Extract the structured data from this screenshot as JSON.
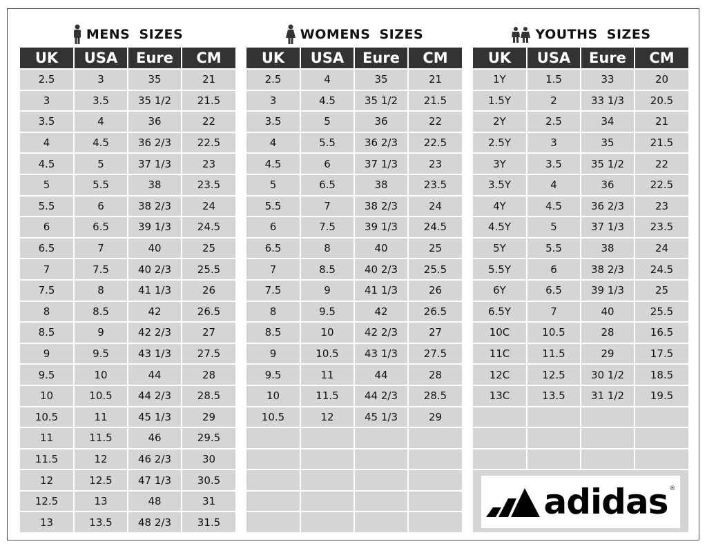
{
  "columns": [
    "UK",
    "USA",
    "Eure",
    "CM"
  ],
  "mens": {
    "title": "MENS  SIZES",
    "icon": "man-icon",
    "rows": [
      [
        "2.5",
        "3",
        "35",
        "21"
      ],
      [
        "3",
        "3.5",
        "35 1/2",
        "21.5"
      ],
      [
        "3.5",
        "4",
        "36",
        "22"
      ],
      [
        "4",
        "4.5",
        "36 2/3",
        "22.5"
      ],
      [
        "4.5",
        "5",
        "37 1/3",
        "23"
      ],
      [
        "5",
        "5.5",
        "38",
        "23.5"
      ],
      [
        "5.5",
        "6",
        "38 2/3",
        "24"
      ],
      [
        "6",
        "6.5",
        "39 1/3",
        "24.5"
      ],
      [
        "6.5",
        "7",
        "40",
        "25"
      ],
      [
        "7",
        "7.5",
        "40 2/3",
        "25.5"
      ],
      [
        "7.5",
        "8",
        "41 1/3",
        "26"
      ],
      [
        "8",
        "8.5",
        "42",
        "26.5"
      ],
      [
        "8.5",
        "9",
        "42 2/3",
        "27"
      ],
      [
        "9",
        "9.5",
        "43 1/3",
        "27.5"
      ],
      [
        "9.5",
        "10",
        "44",
        "28"
      ],
      [
        "10",
        "10.5",
        "44 2/3",
        "28.5"
      ],
      [
        "10.5",
        "11",
        "45 1/3",
        "29"
      ],
      [
        "11",
        "11.5",
        "46",
        "29.5"
      ],
      [
        "11.5",
        "12",
        "46 2/3",
        "30"
      ],
      [
        "12",
        "12.5",
        "47 1/3",
        "30.5"
      ],
      [
        "12.5",
        "13",
        "48",
        "31"
      ],
      [
        "13",
        "13.5",
        "48 2/3",
        "31.5"
      ]
    ]
  },
  "womens": {
    "title": "WOMENS  SIZES",
    "icon": "woman-icon",
    "rows": [
      [
        "2.5",
        "4",
        "35",
        "21"
      ],
      [
        "3",
        "4.5",
        "35 1/2",
        "21.5"
      ],
      [
        "3.5",
        "5",
        "36",
        "22"
      ],
      [
        "4",
        "5.5",
        "36 2/3",
        "22.5"
      ],
      [
        "4.5",
        "6",
        "37  1/3",
        "23"
      ],
      [
        "5",
        "6.5",
        "38",
        "23.5"
      ],
      [
        "5.5",
        "7",
        "38 2/3",
        "24"
      ],
      [
        "6",
        "7.5",
        "39 1/3",
        "24.5"
      ],
      [
        "6.5",
        "8",
        "40",
        "25"
      ],
      [
        "7",
        "8.5",
        "40 2/3",
        "25.5"
      ],
      [
        "7.5",
        "9",
        "41 1/3",
        "26"
      ],
      [
        "8",
        "9.5",
        "42",
        "26.5"
      ],
      [
        "8.5",
        "10",
        "42 2/3",
        "27"
      ],
      [
        "9",
        "10.5",
        "43 1/3",
        "27.5"
      ],
      [
        "9.5",
        "11",
        "44",
        "28"
      ],
      [
        "10",
        "11.5",
        "44 2/3",
        "28.5"
      ],
      [
        "10.5",
        "12",
        "45 1/3",
        "29"
      ]
    ]
  },
  "youths": {
    "title": "YOUTHS  SIZES",
    "icon": "children-icon",
    "rows": [
      [
        "1Y",
        "1.5",
        "33",
        "20"
      ],
      [
        "1.5Y",
        "2",
        "33 1/3",
        "20.5"
      ],
      [
        "2Y",
        "2.5",
        "34",
        "21"
      ],
      [
        "2.5Y",
        "3",
        "35",
        "21.5"
      ],
      [
        "3Y",
        "3.5",
        "35 1/2",
        "22"
      ],
      [
        "3.5Y",
        "4",
        "36",
        "22.5"
      ],
      [
        "4Y",
        "4.5",
        "36 2/3",
        "23"
      ],
      [
        "4.5Y",
        "5",
        "37 1/3",
        "23.5"
      ],
      [
        "5Y",
        "5.5",
        "38",
        "24"
      ],
      [
        "5.5Y",
        "6",
        "38 2/3",
        "24.5"
      ],
      [
        "6Y",
        "6.5",
        "39 1/3",
        "25"
      ],
      [
        "6.5Y",
        "7",
        "40",
        "25.5"
      ],
      [
        "10C",
        "10.5",
        "28",
        "16.5"
      ],
      [
        "11C",
        "11.5",
        "29",
        "17.5"
      ],
      [
        "12C",
        "12.5",
        "30 1/2",
        "18.5"
      ],
      [
        "13C",
        "13.5",
        "31 1/2",
        "19.5"
      ]
    ]
  },
  "logo": {
    "brand": "adidas"
  },
  "colors": {
    "header_bg": "#333333",
    "cell_bg": "#d5d5d6"
  }
}
